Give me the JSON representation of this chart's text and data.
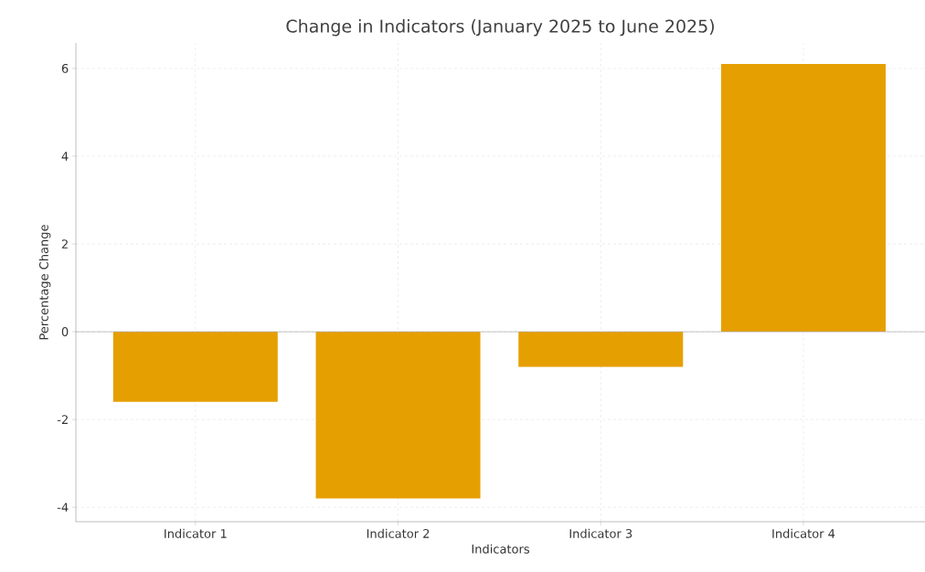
{
  "chart_data": {
    "type": "bar",
    "title": "Change in Indicators (January 2025 to June 2025)",
    "xlabel": "Indicators",
    "ylabel": "Percentage Change",
    "categories": [
      "Indicator 1",
      "Indicator 2",
      "Indicator 3",
      "Indicator 4"
    ],
    "values": [
      -1.6,
      -3.8,
      -0.8,
      6.1
    ],
    "color": "#e69f00",
    "ylim": [
      -4.33,
      6.58
    ],
    "yticks": [
      -4,
      -2,
      0,
      2,
      4,
      6
    ],
    "grid": true,
    "ref_lines": [
      {
        "axis": "y",
        "value": 0,
        "color": "#aaaaaa"
      }
    ]
  }
}
